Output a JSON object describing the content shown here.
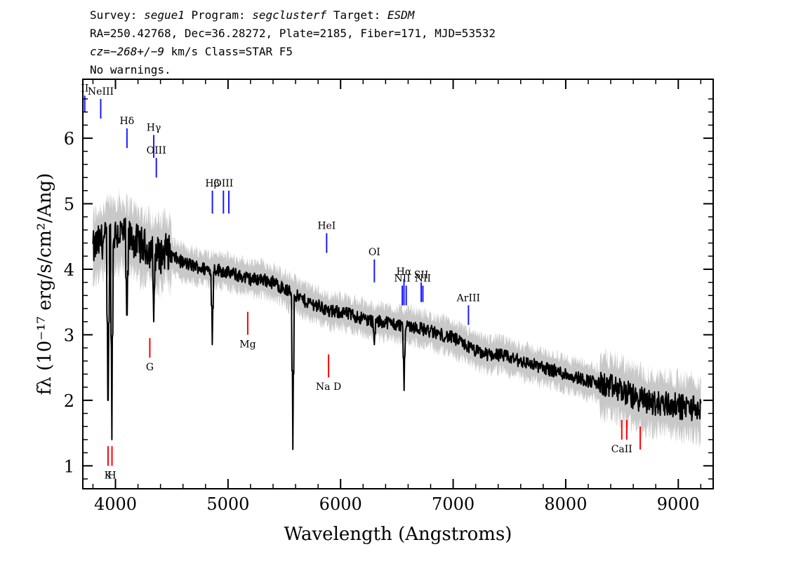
{
  "header": {
    "line1": {
      "survey_label": "Survey:",
      "survey": "segue1",
      "program_label": "Program:",
      "program": "segclusterf",
      "target_label": "Target:",
      "target": "ESDM"
    },
    "line2": "RA=250.42768, Dec=36.28272, Plate=2185, Fiber=171, MJD=53532",
    "line3": {
      "cz": "cz=−268+/−9",
      "rest": "km/s Class=STAR F5"
    },
    "line4": "No warnings."
  },
  "chart_data": {
    "type": "line",
    "xlabel": "Wavelength (Angstroms)",
    "ylabel": "fλ (10⁻¹⁷ erg/s/cm²/Ang)",
    "xlim": [
      3710,
      9310
    ],
    "ylim": [
      0.65,
      6.9
    ],
    "xticks": [
      4000,
      5000,
      6000,
      7000,
      8000,
      9000
    ],
    "yticks": [
      1,
      2,
      3,
      4,
      5,
      6
    ],
    "grid": false,
    "colors": {
      "flux": "#000000",
      "error": "#c8c8c8",
      "emission": "#1a1aff",
      "absorption": "#ff0000"
    },
    "series": [
      {
        "name": "flux",
        "x": [
          3800,
          3850,
          3900,
          3950,
          4000,
          4050,
          4100,
          4150,
          4200,
          4250,
          4300,
          4350,
          4400,
          4450,
          4500,
          4600,
          4700,
          4800,
          4900,
          5000,
          5100,
          5200,
          5300,
          5400,
          5500,
          5600,
          5700,
          5800,
          5900,
          6000,
          6100,
          6200,
          6300,
          6400,
          6500,
          6600,
          6700,
          6800,
          6900,
          7000,
          7100,
          7200,
          7300,
          7400,
          7500,
          7600,
          7700,
          7800,
          7900,
          8000,
          8100,
          8200,
          8300,
          8400,
          8500,
          8600,
          8700,
          8800,
          8900,
          9000,
          9100,
          9200
        ],
        "y": [
          4.3,
          4.4,
          4.45,
          4.5,
          4.55,
          4.55,
          4.5,
          4.45,
          4.4,
          4.35,
          4.3,
          4.25,
          4.2,
          4.3,
          4.2,
          4.1,
          4.05,
          4.0,
          4.0,
          3.95,
          3.9,
          3.85,
          3.85,
          3.8,
          3.7,
          3.6,
          3.5,
          3.45,
          3.35,
          3.35,
          3.3,
          3.25,
          3.2,
          3.2,
          3.15,
          3.15,
          3.1,
          3.05,
          3.0,
          2.95,
          2.85,
          2.75,
          2.7,
          2.7,
          2.65,
          2.6,
          2.55,
          2.5,
          2.45,
          2.4,
          2.35,
          2.3,
          2.25,
          2.2,
          2.15,
          2.05,
          2.0,
          1.95,
          1.95,
          1.9,
          1.9,
          1.85
        ]
      }
    ],
    "absorption_dips": [
      {
        "x": 3934,
        "y": 2.0
      },
      {
        "x": 3969,
        "y": 1.4
      },
      {
        "x": 4102,
        "y": 3.3
      },
      {
        "x": 4340,
        "y": 3.2
      },
      {
        "x": 4861,
        "y": 2.85
      },
      {
        "x": 5577,
        "y": 1.25
      },
      {
        "x": 6300,
        "y": 2.85
      },
      {
        "x": 6563,
        "y": 2.15
      }
    ],
    "line_markers": [
      {
        "label": "II",
        "x": 3727,
        "y0": 6.4,
        "y1": 6.65,
        "kind": "emission"
      },
      {
        "label": "NeIII",
        "x": 3869,
        "y0": 6.3,
        "y1": 6.6,
        "kind": "emission"
      },
      {
        "label": "Hδ",
        "x": 4102,
        "y0": 5.85,
        "y1": 6.15,
        "kind": "emission"
      },
      {
        "label": "Hγ",
        "x": 4340,
        "y0": 5.7,
        "y1": 6.05,
        "kind": "emission"
      },
      {
        "label": "OIII",
        "x": 4363,
        "y0": 5.4,
        "y1": 5.7,
        "kind": "emission"
      },
      {
        "label": "Hβ",
        "x": 4861,
        "y0": 4.85,
        "y1": 5.2,
        "kind": "emission"
      },
      {
        "label": "OIII",
        "x": 4959,
        "y0": 4.85,
        "y1": 5.2,
        "kind": "emission"
      },
      {
        "label": "",
        "x": 5007,
        "y0": 4.85,
        "y1": 5.2,
        "kind": "emission"
      },
      {
        "label": "HeI",
        "x": 5876,
        "y0": 4.25,
        "y1": 4.55,
        "kind": "emission"
      },
      {
        "label": "OI",
        "x": 6300,
        "y0": 3.8,
        "y1": 4.15,
        "kind": "emission"
      },
      {
        "label": "NII",
        "x": 6548,
        "y0": 3.45,
        "y1": 3.75,
        "kind": "emission"
      },
      {
        "label": "Hα",
        "x": 6563,
        "y0": 3.45,
        "y1": 3.85,
        "kind": "emission"
      },
      {
        "label": "",
        "x": 6583,
        "y0": 3.45,
        "y1": 3.75,
        "kind": "emission"
      },
      {
        "label": "SII",
        "x": 6716,
        "y0": 3.5,
        "y1": 3.8,
        "kind": "emission"
      },
      {
        "label": "NII",
        "x": 6731,
        "y0": 3.5,
        "y1": 3.75,
        "kind": "emission"
      },
      {
        "label": "ArIII",
        "x": 7136,
        "y0": 3.15,
        "y1": 3.45,
        "kind": "emission"
      },
      {
        "label": "K",
        "x": 3934,
        "y0": 1.0,
        "y1": 1.3,
        "kind": "absorption"
      },
      {
        "label": "H",
        "x": 3969,
        "y0": 1.0,
        "y1": 1.3,
        "kind": "absorption"
      },
      {
        "label": "G",
        "x": 4305,
        "y0": 2.65,
        "y1": 2.95,
        "kind": "absorption"
      },
      {
        "label": "Mg",
        "x": 5175,
        "y0": 3.0,
        "y1": 3.35,
        "kind": "absorption"
      },
      {
        "label": "Na D",
        "x": 5893,
        "y0": 2.35,
        "y1": 2.7,
        "kind": "absorption"
      },
      {
        "label": "CaII",
        "x": 8498,
        "y0": 1.4,
        "y1": 1.7,
        "kind": "absorption"
      },
      {
        "label": "",
        "x": 8542,
        "y0": 1.4,
        "y1": 1.7,
        "kind": "absorption"
      },
      {
        "label": "",
        "x": 8662,
        "y0": 1.25,
        "y1": 1.6,
        "kind": "absorption"
      }
    ]
  }
}
